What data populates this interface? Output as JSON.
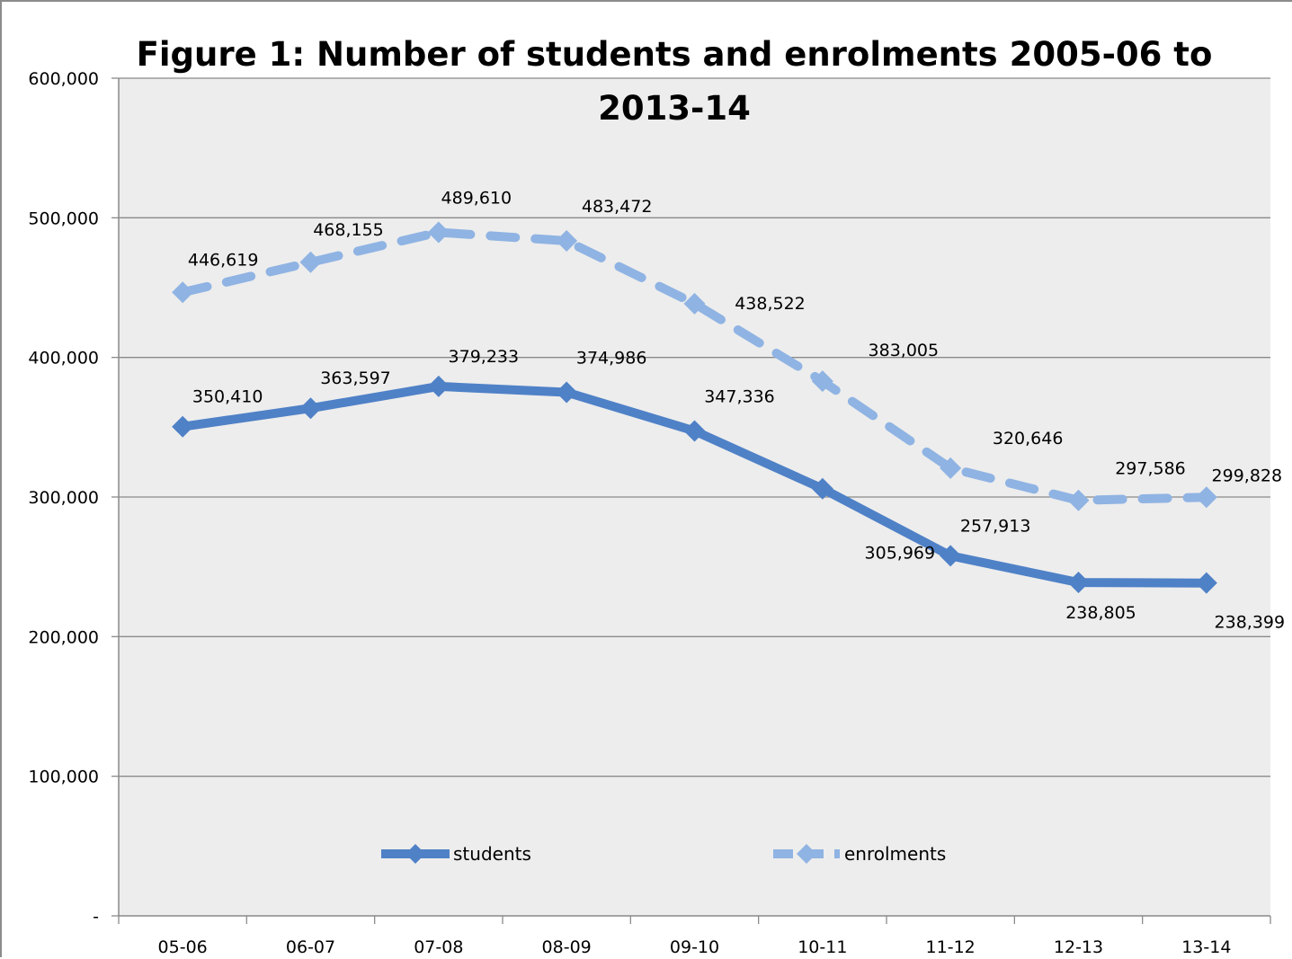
{
  "chart_data": {
    "type": "line",
    "title_line1": "Figure 1: Number of students and enrolments 2005-06 to",
    "title_line2": "2013-14",
    "categories": [
      "05-06",
      "06-07",
      "07-08",
      "08-09",
      "09-10",
      "10-11",
      "11-12",
      "12-13",
      "13-14"
    ],
    "ylim": [
      0,
      600000
    ],
    "yticks": [
      0,
      100000,
      200000,
      300000,
      400000,
      500000,
      600000
    ],
    "ytick_labels": [
      "-",
      "100,000",
      "200,000",
      "300,000",
      "400,000",
      "500,000",
      "600,000"
    ],
    "grid": true,
    "legend_position": "bottom-inside",
    "series": [
      {
        "name": "students",
        "values": [
          350410,
          363597,
          379233,
          374986,
          347336,
          305969,
          257913,
          238805,
          238399
        ],
        "labels": [
          "350,410",
          "363,597",
          "379,233",
          "374,986",
          "347,336",
          "305,969",
          "257,913",
          "238,805",
          "238,399"
        ],
        "color": "#4f81c7",
        "line_style": "solid",
        "marker": "diamond"
      },
      {
        "name": "enrolments",
        "values": [
          446619,
          468155,
          489610,
          483472,
          438522,
          383005,
          320646,
          297586,
          299828
        ],
        "labels": [
          "446,619",
          "468,155",
          "489,610",
          "483,472",
          "438,522",
          "383,005",
          "320,646",
          "297,586",
          "299,828"
        ],
        "color": "#8fb3e3",
        "line_style": "dashed",
        "marker": "diamond"
      }
    ]
  }
}
